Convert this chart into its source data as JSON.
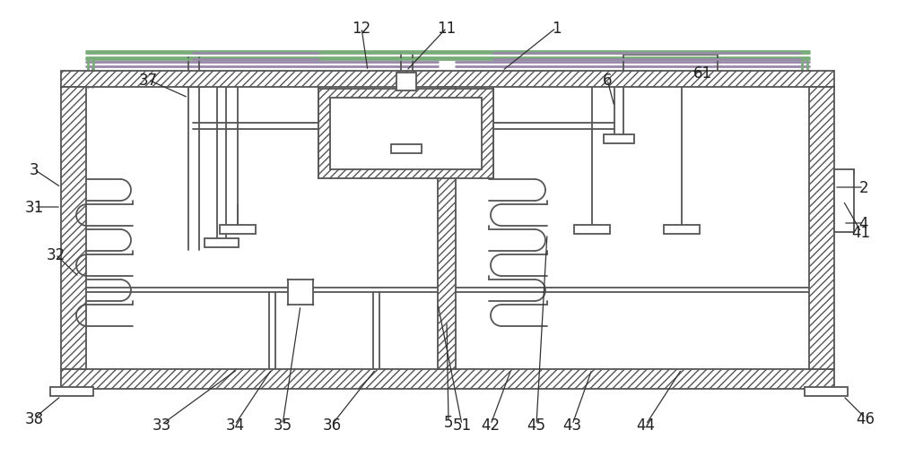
{
  "bg_color": "#ffffff",
  "lc": "#555555",
  "lc_thin": "#888888",
  "green_line": "#7aab7a",
  "purple_line": "#9988aa",
  "fig_width": 10.0,
  "fig_height": 5.1,
  "dpi": 100
}
